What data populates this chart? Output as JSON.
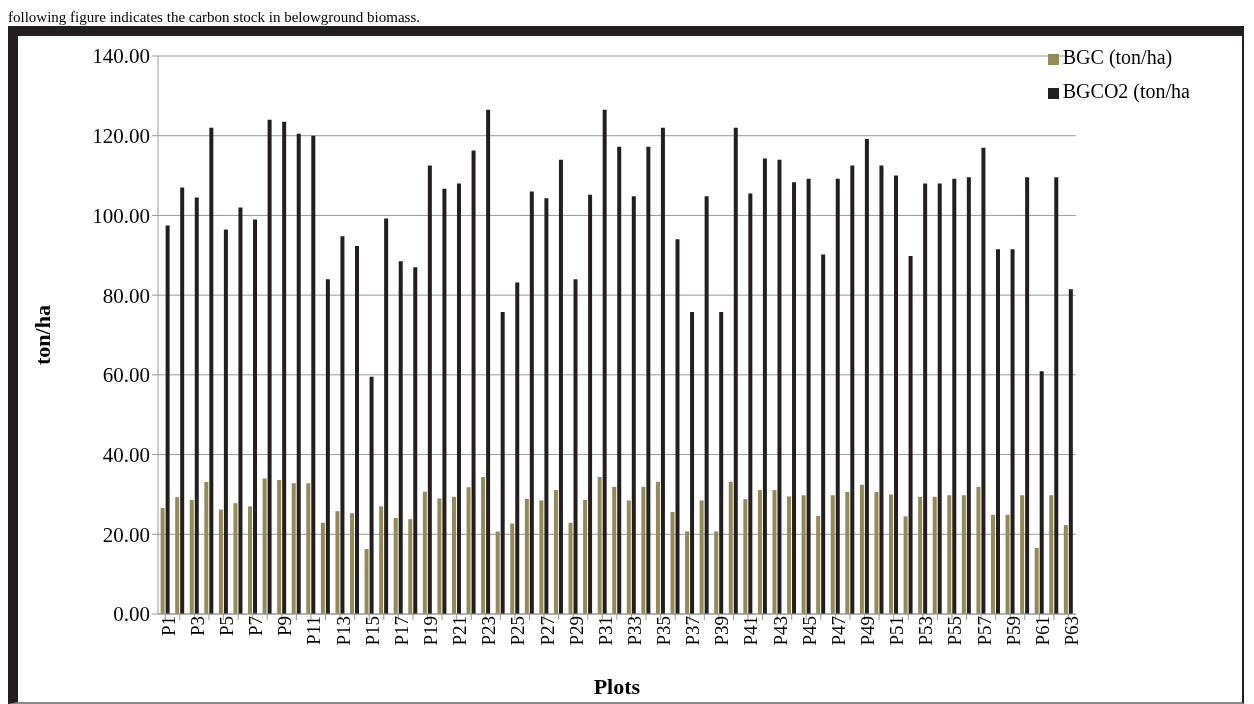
{
  "chart_data": {
    "type": "bar",
    "xlabel": "Plots",
    "ylabel": "ton/ha",
    "annotations": [
      "following figure indicates the carbon stock in belowground biomass."
    ],
    "categories": [
      "P1",
      null,
      "P3",
      null,
      "P5",
      null,
      "P7",
      null,
      "P9",
      null,
      "P11",
      null,
      "P13",
      null,
      "P15",
      null,
      "P17",
      null,
      "P19",
      null,
      "P21",
      null,
      "P23",
      null,
      "P25",
      null,
      "P27",
      null,
      "P29",
      null,
      "P31",
      null,
      "P33",
      null,
      "P35",
      null,
      "P37",
      null,
      "P39",
      null,
      "P41",
      null,
      "P43",
      null,
      "P45",
      null,
      "P47",
      null,
      "P49",
      null,
      "P51",
      null,
      "P53",
      null,
      "P55",
      null,
      "P57",
      null,
      "P59",
      null,
      "P61",
      null,
      "P63"
    ],
    "series": [
      {
        "name": "BGC (ton/ha)",
        "color": "#948a54",
        "values": [
          26.6,
          29.3,
          28.6,
          33.1,
          26.2,
          27.8,
          27,
          34,
          33.6,
          32.8,
          32.8,
          22.9,
          25.8,
          25.3,
          16.3,
          27,
          24.1,
          23.8,
          30.7,
          29,
          29.4,
          31.8,
          34.4,
          20.7,
          22.7,
          28.9,
          28.5,
          31.1,
          22.9,
          28.6,
          34.4,
          31.9,
          28.5,
          31.9,
          33.2,
          25.6,
          20.7,
          28.5,
          20.7,
          33.2,
          28.8,
          31.1,
          31.1,
          29.5,
          29.8,
          24.6,
          29.8,
          30.6,
          32.4,
          30.6,
          30,
          24.5,
          29.4,
          29.4,
          29.8,
          29.8,
          31.9,
          24.9,
          24.9,
          29.8,
          16.6,
          29.8,
          22.3
        ]
      },
      {
        "name": "BGCO2 (ton/ha",
        "color": "#231f20",
        "values": [
          97.5,
          107,
          104.5,
          122,
          96.5,
          102,
          99,
          124,
          123.5,
          120.5,
          120,
          84,
          94.8,
          92.3,
          59.5,
          99.2,
          88.5,
          87,
          112.5,
          106.7,
          108,
          116.3,
          126.5,
          75.8,
          83.2,
          106,
          104.3,
          114,
          84,
          105.2,
          126.5,
          117.2,
          104.8,
          117.2,
          122,
          94,
          75.8,
          104.8,
          75.8,
          122,
          105.5,
          114.3,
          114,
          108.3,
          109.2,
          90.2,
          109.2,
          112.5,
          119.2,
          112.5,
          110,
          89.8,
          108,
          108,
          109.2,
          109.6,
          117,
          91.5,
          91.5,
          109.6,
          60.9,
          109.6,
          81.5
        ]
      }
    ],
    "ylim": [
      0,
      140
    ],
    "yticks": [
      {
        "value": 0,
        "label": "0.00"
      },
      {
        "value": 20,
        "label": "20.00"
      },
      {
        "value": 40,
        "label": "40.00"
      },
      {
        "value": 60,
        "label": "60.00"
      },
      {
        "value": 80,
        "label": "80.00"
      },
      {
        "value": 100,
        "label": "100.00"
      },
      {
        "value": 120,
        "label": "120.00"
      },
      {
        "value": 140,
        "label": "140.00"
      }
    ],
    "grid": "y",
    "legend": "top right"
  }
}
